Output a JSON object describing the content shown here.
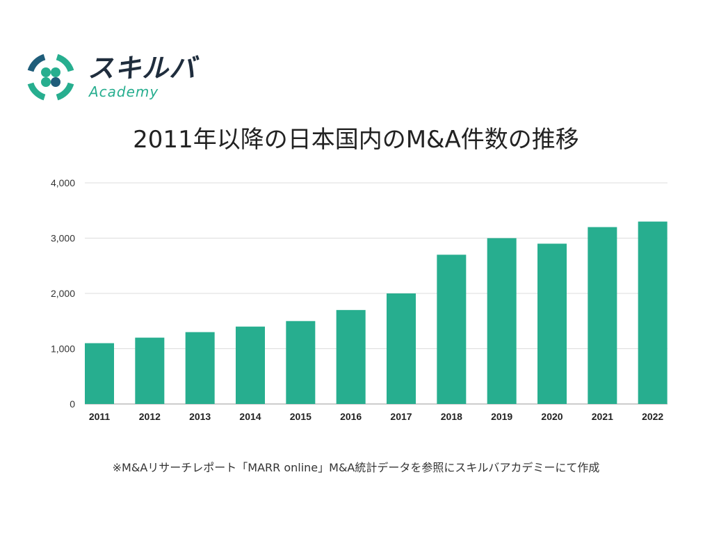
{
  "logo": {
    "name": "スキルバ",
    "sub": "Academy",
    "colors": {
      "teal": "#27ae8f",
      "navy": "#1f5d7a",
      "text": "#1f2d3d"
    }
  },
  "chart_data": {
    "type": "bar",
    "title": "2011年以降の日本国内のM&A件数の推移",
    "xlabel": "",
    "ylabel": "",
    "categories": [
      "2011",
      "2012",
      "2013",
      "2014",
      "2015",
      "2016",
      "2017",
      "2018",
      "2019",
      "2020",
      "2021",
      "2022"
    ],
    "values": [
      1100,
      1200,
      1300,
      1400,
      1500,
      1700,
      2000,
      2700,
      3000,
      2900,
      3200,
      3300
    ],
    "ylim": [
      0,
      4000
    ],
    "yticks": [
      0,
      1000,
      2000,
      3000,
      4000
    ],
    "ytick_labels": [
      "0",
      "1,000",
      "2,000",
      "3,000",
      "4,000"
    ],
    "grid": true,
    "bar_color": "#27ae8f"
  },
  "footnote": "※M&Aリサーチレポート「MARR online」M&A統計データを参照にスキルバアカデミーにて作成"
}
